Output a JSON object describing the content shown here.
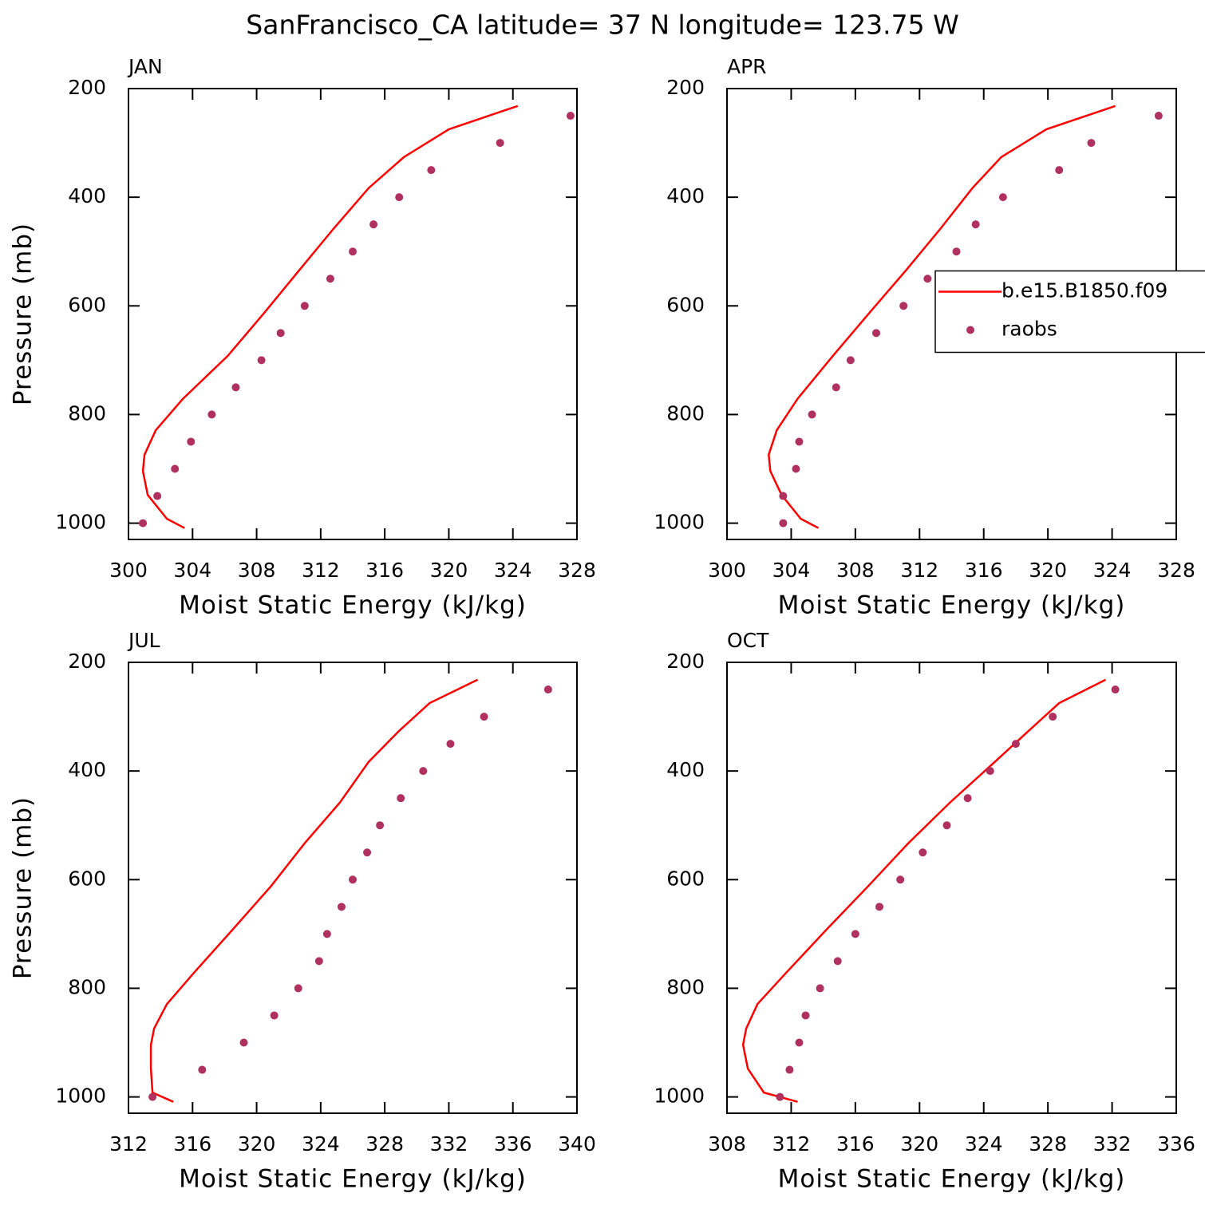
{
  "title": "SanFrancisco_CA  latitude= 37 N longitude= 123.75 W",
  "chart_data": [
    {
      "type": "line",
      "title": "JAN",
      "xlabel": "Moist Static Energy (kJ/kg)",
      "ylabel": "Pressure (mb)",
      "xlim": [
        300,
        328
      ],
      "xticks": [
        300,
        304,
        308,
        312,
        316,
        320,
        324,
        328
      ],
      "ylim": [
        1030,
        200
      ],
      "yticks": [
        200,
        400,
        600,
        800,
        1000
      ],
      "series": [
        {
          "color": "#ff0000",
          "style": "line",
          "x": [
            324.3,
            320.0,
            317.2,
            315.0,
            312.8,
            310.7,
            308.5,
            306.2,
            303.4,
            301.7,
            301.0,
            300.9,
            301.2,
            302.4,
            303.5
          ],
          "values": [
            232,
            275,
            326,
            383,
            458,
            533,
            612,
            692,
            771,
            829,
            874,
            904,
            948,
            992,
            1009
          ]
        },
        {
          "color": "#b03060",
          "style": "markers",
          "x": [
            327.6,
            323.2,
            318.9,
            316.9,
            315.3,
            314.0,
            312.6,
            311.0,
            309.5,
            308.3,
            306.7,
            305.2,
            303.9,
            302.9,
            301.8,
            300.9
          ],
          "values": [
            250,
            300,
            350,
            400,
            450,
            500,
            550,
            600,
            650,
            700,
            750,
            800,
            850,
            900,
            950,
            1000
          ]
        }
      ]
    },
    {
      "type": "line",
      "title": "APR",
      "xlabel": "Moist Static Energy (kJ/kg)",
      "legend": "right",
      "xlim": [
        300,
        328
      ],
      "xticks": [
        300,
        304,
        308,
        312,
        316,
        320,
        324,
        328
      ],
      "ylim": [
        1030,
        200
      ],
      "yticks": [
        200,
        400,
        600,
        800,
        1000
      ],
      "series": [
        {
          "name": "b.e15.B1850.f09",
          "color": "#ff0000",
          "style": "line",
          "x": [
            324.2,
            319.9,
            317.1,
            315.3,
            313.3,
            311.2,
            308.9,
            306.6,
            304.4,
            303.1,
            302.6,
            302.7,
            303.4,
            304.6,
            305.7
          ],
          "values": [
            232,
            275,
            326,
            383,
            458,
            533,
            612,
            692,
            771,
            829,
            874,
            904,
            948,
            992,
            1009
          ]
        },
        {
          "name": "raobs",
          "color": "#b03060",
          "style": "markers",
          "x": [
            326.9,
            322.7,
            320.7,
            317.2,
            315.5,
            314.3,
            312.5,
            311.0,
            309.3,
            307.7,
            306.8,
            305.3,
            304.5,
            304.3,
            303.5,
            303.5
          ],
          "values": [
            250,
            300,
            350,
            400,
            450,
            500,
            550,
            600,
            650,
            700,
            750,
            800,
            850,
            900,
            950,
            1000
          ]
        }
      ]
    },
    {
      "type": "line",
      "title": "JUL",
      "xlabel": "Moist Static Energy (kJ/kg)",
      "ylabel": "Pressure (mb)",
      "xlim": [
        312,
        340
      ],
      "xticks": [
        312,
        316,
        320,
        324,
        328,
        332,
        336,
        340
      ],
      "ylim": [
        1030,
        200
      ],
      "yticks": [
        200,
        400,
        600,
        800,
        1000
      ],
      "series": [
        {
          "color": "#ff0000",
          "style": "line",
          "x": [
            333.8,
            330.8,
            328.9,
            327.0,
            325.2,
            323.0,
            320.9,
            318.5,
            316.1,
            314.4,
            313.6,
            313.4,
            313.4,
            313.5,
            314.8
          ],
          "values": [
            232,
            275,
            326,
            383,
            458,
            533,
            612,
            692,
            771,
            829,
            874,
            904,
            948,
            992,
            1009
          ]
        },
        {
          "color": "#b03060",
          "style": "markers",
          "x": [
            338.2,
            334.2,
            332.1,
            330.4,
            329.0,
            327.7,
            326.9,
            326.0,
            325.3,
            324.4,
            323.9,
            322.6,
            321.1,
            319.2,
            316.6,
            313.5
          ],
          "values": [
            250,
            300,
            350,
            400,
            450,
            500,
            550,
            600,
            650,
            700,
            750,
            800,
            850,
            900,
            950,
            1000
          ]
        }
      ]
    },
    {
      "type": "line",
      "title": "OCT",
      "xlabel": "Moist Static Energy (kJ/kg)",
      "xlim": [
        308,
        336
      ],
      "xticks": [
        308,
        312,
        316,
        320,
        324,
        328,
        332,
        336
      ],
      "ylim": [
        1030,
        200
      ],
      "yticks": [
        200,
        400,
        600,
        800,
        1000
      ],
      "series": [
        {
          "color": "#ff0000",
          "style": "line",
          "x": [
            331.6,
            328.7,
            326.8,
            324.7,
            321.9,
            319.3,
            316.8,
            314.2,
            311.7,
            309.9,
            309.2,
            309.0,
            309.3,
            310.3,
            312.4
          ],
          "values": [
            232,
            275,
            326,
            383,
            458,
            533,
            612,
            692,
            771,
            829,
            874,
            904,
            948,
            992,
            1009
          ]
        },
        {
          "color": "#b03060",
          "style": "markers",
          "x": [
            332.2,
            328.3,
            326.0,
            324.4,
            323.0,
            321.7,
            320.2,
            318.8,
            317.5,
            316.0,
            314.9,
            313.8,
            312.9,
            312.5,
            311.9,
            311.3
          ],
          "values": [
            250,
            300,
            350,
            400,
            450,
            500,
            550,
            600,
            650,
            700,
            750,
            800,
            850,
            900,
            950,
            1000
          ]
        }
      ]
    }
  ]
}
